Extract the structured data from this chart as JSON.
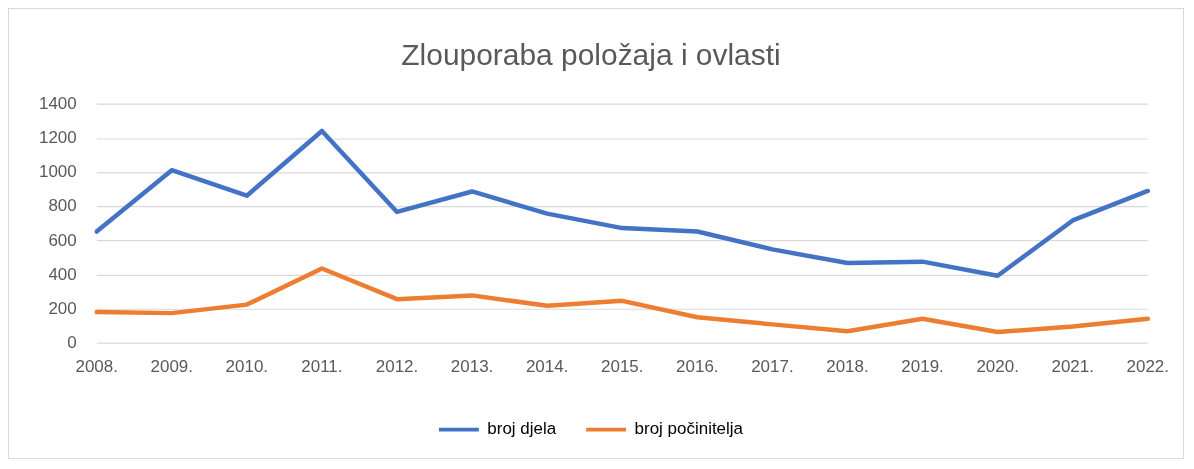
{
  "chart_data": {
    "type": "line",
    "title": "Zlouporaba položaja i ovlasti",
    "categories": [
      "2008.",
      "2009.",
      "2010.",
      "2011.",
      "2012.",
      "2013.",
      "2014.",
      "2015.",
      "2016.",
      "2017.",
      "2018.",
      "2019.",
      "2020.",
      "2021.",
      "2022."
    ],
    "series": [
      {
        "name": "broj djela",
        "color": "#4472c4",
        "values": [
          655,
          1015,
          865,
          1245,
          770,
          890,
          760,
          675,
          655,
          550,
          470,
          478,
          395,
          720,
          893
        ]
      },
      {
        "name": "broj počinitelja",
        "color": "#ed7d31",
        "values": [
          182,
          176,
          226,
          438,
          258,
          280,
          219,
          248,
          152,
          110,
          70,
          143,
          65,
          98,
          143
        ]
      }
    ],
    "ylim": [
      0,
      1400
    ],
    "yticks": [
      0,
      200,
      400,
      600,
      800,
      1000,
      1200,
      1400
    ],
    "grid": "y",
    "legend": "bottom",
    "marker": "none",
    "line_style": "solid"
  }
}
